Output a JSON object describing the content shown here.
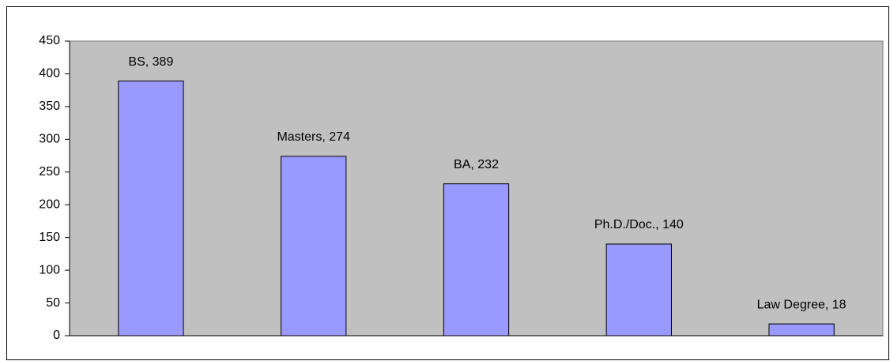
{
  "chart_data": {
    "type": "bar",
    "values": [
      389,
      274,
      232,
      140,
      18
    ],
    "value_labels": [
      "BS, 389",
      "Masters, 274",
      "BA, 232",
      "Ph.D./Doc., 140",
      "Law Degree, 18"
    ],
    "color": "#9999ff",
    "ylim": [
      0,
      450
    ],
    "yticks": [
      0,
      50,
      100,
      150,
      200,
      250,
      300,
      350,
      400,
      450
    ],
    "grid": false
  }
}
